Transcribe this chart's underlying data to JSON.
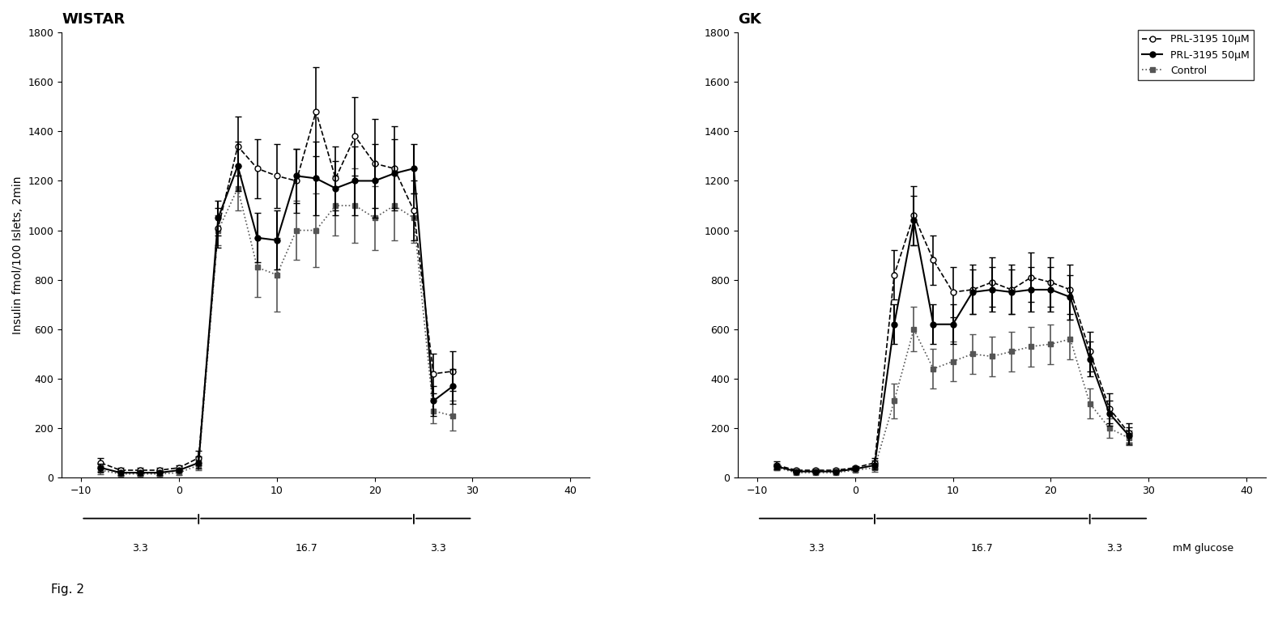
{
  "wistar": {
    "title": "WISTAR",
    "x": [
      -8,
      -6,
      -4,
      -2,
      0,
      2,
      4,
      6,
      8,
      10,
      12,
      14,
      16,
      18,
      20,
      22,
      24,
      26,
      28
    ],
    "prl10_y": [
      60,
      30,
      30,
      30,
      40,
      80,
      1010,
      1340,
      1250,
      1220,
      1200,
      1480,
      1210,
      1380,
      1270,
      1250,
      1080,
      420,
      430
    ],
    "prl10_err": [
      20,
      10,
      10,
      10,
      10,
      30,
      80,
      120,
      120,
      130,
      130,
      180,
      130,
      160,
      180,
      170,
      120,
      80,
      80
    ],
    "prl50_y": [
      40,
      20,
      20,
      20,
      30,
      60,
      1050,
      1260,
      970,
      960,
      1220,
      1210,
      1170,
      1200,
      1200,
      1230,
      1250,
      310,
      370
    ],
    "prl50_err": [
      15,
      8,
      8,
      8,
      8,
      25,
      70,
      100,
      100,
      120,
      110,
      150,
      110,
      140,
      150,
      140,
      100,
      60,
      70
    ],
    "ctrl_y": [
      30,
      15,
      15,
      15,
      20,
      50,
      1000,
      1170,
      850,
      820,
      1000,
      1000,
      1100,
      1100,
      1050,
      1100,
      1050,
      270,
      250
    ],
    "ctrl_err": [
      15,
      8,
      8,
      8,
      8,
      20,
      60,
      90,
      120,
      150,
      120,
      150,
      120,
      150,
      130,
      140,
      100,
      50,
      60
    ],
    "ylim": [
      0,
      1800
    ],
    "yticks": [
      0,
      200,
      400,
      600,
      800,
      1000,
      1200,
      1400,
      1600,
      1800
    ],
    "xlim": [
      -12,
      42
    ],
    "xticks": [
      -10,
      0,
      10,
      20,
      30,
      40
    ],
    "ylabel": "Insulin fmol/100 Islets, 2min"
  },
  "gk": {
    "title": "GK",
    "x": [
      -8,
      -6,
      -4,
      -2,
      0,
      2,
      4,
      6,
      8,
      10,
      12,
      14,
      16,
      18,
      20,
      22,
      24,
      26,
      28
    ],
    "prl10_y": [
      50,
      30,
      30,
      30,
      40,
      60,
      820,
      1060,
      880,
      750,
      760,
      790,
      760,
      810,
      790,
      760,
      510,
      280,
      180
    ],
    "prl10_err": [
      15,
      8,
      8,
      8,
      8,
      20,
      100,
      120,
      100,
      100,
      100,
      100,
      100,
      100,
      100,
      100,
      80,
      60,
      40
    ],
    "prl50_y": [
      45,
      25,
      25,
      25,
      35,
      50,
      620,
      1040,
      620,
      620,
      750,
      760,
      750,
      760,
      760,
      730,
      480,
      260,
      170
    ],
    "prl50_err": [
      12,
      6,
      6,
      6,
      6,
      18,
      80,
      100,
      80,
      80,
      90,
      90,
      90,
      90,
      90,
      90,
      70,
      50,
      35
    ],
    "ctrl_y": [
      40,
      20,
      20,
      20,
      30,
      40,
      310,
      600,
      440,
      470,
      500,
      490,
      510,
      530,
      540,
      560,
      300,
      200,
      160
    ],
    "ctrl_err": [
      10,
      6,
      6,
      6,
      6,
      15,
      70,
      90,
      80,
      80,
      80,
      80,
      80,
      80,
      80,
      80,
      60,
      40,
      30
    ],
    "ylim": [
      0,
      1800
    ],
    "yticks": [
      0,
      200,
      400,
      600,
      800,
      1000,
      1200,
      1400,
      1600,
      1800
    ],
    "xlim": [
      -12,
      42
    ],
    "xticks": [
      -10,
      0,
      10,
      20,
      30,
      40
    ]
  },
  "legend_labels": [
    "PRL-3195 10μM",
    "PRL-3195 50μM",
    "Control"
  ],
  "glucose_label_3_3_left": "3.3",
  "glucose_label_16_7": "16.7",
  "glucose_label_3_3_right": "3.3",
  "mM_glucose_label": "mM glucose",
  "fig_label": "Fig. 2",
  "background_color": "#ffffff"
}
